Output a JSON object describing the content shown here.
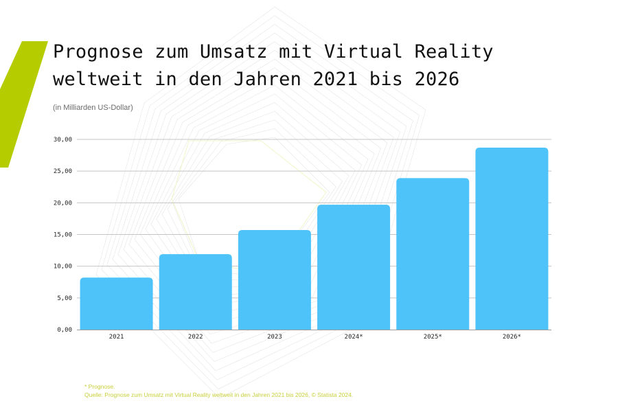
{
  "colors": {
    "accent": "#b5cc00",
    "bar": "#4dc3fa",
    "grid": "#c4c4c4",
    "title": "#111111",
    "footnote": "#c8cf3a"
  },
  "chart_data": {
    "type": "bar",
    "title": "Prognose zum Umsatz mit Virtual Reality weltweit in den Jahren 2021 bis 2026",
    "subtitle": "(in Milliarden US-Dollar)",
    "categories": [
      "2021",
      "2022",
      "2023",
      "2024*",
      "2025*",
      "2026*"
    ],
    "values": [
      8.2,
      11.9,
      15.7,
      19.7,
      23.9,
      28.7
    ],
    "yticks": [
      "0,00",
      "5,00",
      "10,00",
      "15,00",
      "20,00",
      "25,00",
      "30,00"
    ],
    "ytick_values": [
      0,
      5,
      10,
      15,
      20,
      25,
      30
    ],
    "ylim": [
      0,
      30
    ],
    "xlabel": "",
    "ylabel": "",
    "grid": true
  },
  "footnote": {
    "note": "* Prognose.",
    "source": "Quelle: Prognose zum Umsatz mit Virtual Reality weltweit in den Jahren 2021 bis 2026, © Statista 2024."
  }
}
